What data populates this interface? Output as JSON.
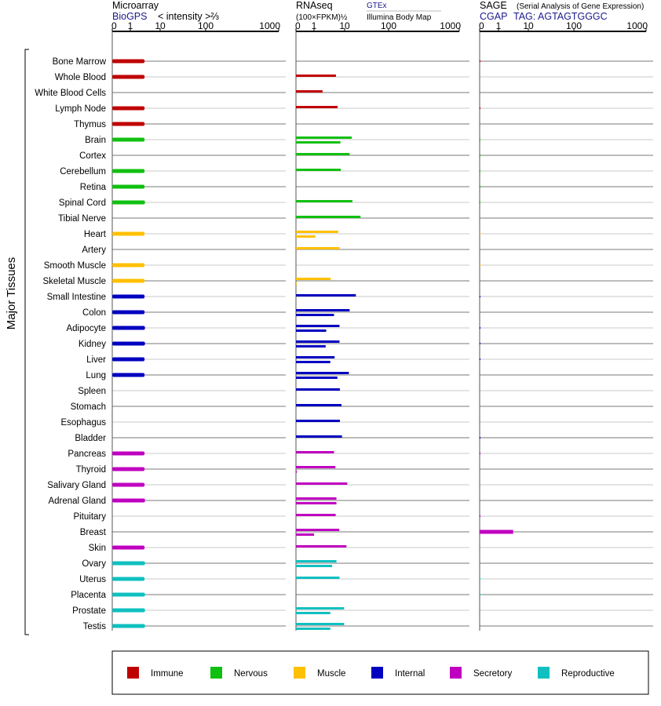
{
  "chart_data": {
    "type": "bar",
    "orientation": "horizontal",
    "side_label": "Major Tissues",
    "panels": [
      {
        "id": "microarray",
        "title": "Microarray",
        "source": "BioGPS",
        "subtitle": "< intensity >⅔",
        "scale": "power 2/3",
        "ticks": [
          "0",
          "1",
          "10",
          "100",
          "1000"
        ],
        "xlim": [
          0,
          1000
        ],
        "bar_groups": [
          [
            3.0
          ],
          [
            3.0
          ],
          [],
          [
            3.0
          ],
          [
            3.0
          ],
          [
            3.0
          ],
          [],
          [
            3.0
          ],
          [
            3.0
          ],
          [
            3.1
          ],
          [],
          [
            3.0
          ],
          [],
          [
            3.0
          ],
          [
            3.0
          ],
          [
            3.0
          ],
          [
            3.0
          ],
          [
            3.1
          ],
          [
            3.1
          ],
          [
            3.0
          ],
          [
            3.0
          ],
          [],
          [],
          [],
          [],
          [
            3.0
          ],
          [
            3.0
          ],
          [
            3.0
          ],
          [
            3.1
          ],
          [],
          [],
          [
            3.0
          ],
          [
            3.1
          ],
          [
            3.0
          ],
          [
            3.1
          ],
          [
            3.1
          ],
          [
            3.1
          ]
        ]
      },
      {
        "id": "rnaseq",
        "title": "RNAseq",
        "subtitle": "(100×FPKM)½",
        "source_top": "GTEx",
        "source_bottom": "Illumina Body Map",
        "scale": "sqrt",
        "ticks": [
          "0",
          "1",
          "10",
          "100",
          "1000"
        ],
        "xlim": [
          0,
          1000
        ],
        "bar_groups": [
          [],
          [
            5.2
          ],
          [
            1.9
          ],
          [
            5.9
          ],
          [],
          [
            14.5,
            7.3
          ],
          [
            13.0
          ],
          [
            7.5
          ],
          [],
          [
            15.0
          ],
          [
            23.0
          ],
          [
            6.2,
            1.1
          ],
          [
            6.9
          ],
          [],
          [
            3.5,
            0.01
          ],
          [
            18.0
          ],
          [
            13.0,
            4.5
          ],
          [
            6.8,
            2.5
          ],
          [
            6.8,
            2.4
          ],
          [
            4.7,
            3.4
          ],
          [
            12.5,
            5.8
          ],
          [
            7.0
          ],
          [
            7.9
          ],
          [
            7.0
          ],
          [
            8.2
          ],
          [
            4.5
          ],
          [
            5.0,
            0.01
          ],
          [
            11.5
          ],
          [
            5.4,
            5.4
          ],
          [
            5.1
          ],
          [
            6.7,
            1.0
          ],
          [
            11.0
          ],
          [
            5.4,
            3.9
          ],
          [
            6.8
          ],
          [],
          [
            9.6,
            3.4
          ],
          [
            9.6,
            3.4
          ]
        ]
      },
      {
        "id": "sage",
        "title": "SAGE",
        "subtitle": "(Serial Analysis of Gene Expression)",
        "source": "CGAP",
        "tag": "TAG: AGTAGTGGGC",
        "scale": "sqrt",
        "ticks": [
          "0",
          "1",
          "10",
          "100",
          "1000"
        ],
        "xlim": [
          0,
          1000
        ],
        "bar_groups": [
          [
            0.01
          ],
          [],
          [],
          [
            0.01
          ],
          [],
          [
            0.01
          ],
          [
            0.01
          ],
          [
            0.01
          ],
          [
            0.01
          ],
          [
            0.01
          ],
          [],
          [
            0.005
          ],
          [],
          [
            0.005
          ],
          [],
          [
            0.01
          ],
          [],
          [
            0.01
          ],
          [
            0.01
          ],
          [
            0.01
          ],
          [],
          [],
          [],
          [],
          [
            0.01
          ],
          [
            0.01
          ],
          [],
          [],
          [],
          [
            0.01
          ],
          [
            3.1
          ],
          [],
          [],
          [
            0.01
          ],
          [
            0.01
          ],
          [],
          []
        ]
      }
    ],
    "tissues": [
      {
        "name": "Bone Marrow",
        "group": "Immune"
      },
      {
        "name": "Whole Blood",
        "group": "Immune"
      },
      {
        "name": "White Blood Cells",
        "group": "Immune"
      },
      {
        "name": "Lymph Node",
        "group": "Immune"
      },
      {
        "name": "Thymus",
        "group": "Immune"
      },
      {
        "name": "Brain",
        "group": "Nervous"
      },
      {
        "name": "Cortex",
        "group": "Nervous"
      },
      {
        "name": "Cerebellum",
        "group": "Nervous"
      },
      {
        "name": "Retina",
        "group": "Nervous"
      },
      {
        "name": "Spinal Cord",
        "group": "Nervous"
      },
      {
        "name": "Tibial Nerve",
        "group": "Nervous"
      },
      {
        "name": "Heart",
        "group": "Muscle"
      },
      {
        "name": "Artery",
        "group": "Muscle"
      },
      {
        "name": "Smooth Muscle",
        "group": "Muscle"
      },
      {
        "name": "Skeletal Muscle",
        "group": "Muscle"
      },
      {
        "name": "Small Intestine",
        "group": "Internal"
      },
      {
        "name": "Colon",
        "group": "Internal"
      },
      {
        "name": "Adipocyte",
        "group": "Internal"
      },
      {
        "name": "Kidney",
        "group": "Internal"
      },
      {
        "name": "Liver",
        "group": "Internal"
      },
      {
        "name": "Lung",
        "group": "Internal"
      },
      {
        "name": "Spleen",
        "group": "Internal"
      },
      {
        "name": "Stomach",
        "group": "Internal"
      },
      {
        "name": "Esophagus",
        "group": "Internal"
      },
      {
        "name": "Bladder",
        "group": "Internal"
      },
      {
        "name": "Pancreas",
        "group": "Secretory"
      },
      {
        "name": "Thyroid",
        "group": "Secretory"
      },
      {
        "name": "Salivary Gland",
        "group": "Secretory"
      },
      {
        "name": "Adrenal Gland",
        "group": "Secretory"
      },
      {
        "name": "Pituitary",
        "group": "Secretory"
      },
      {
        "name": "Breast",
        "group": "Secretory"
      },
      {
        "name": "Skin",
        "group": "Secretory"
      },
      {
        "name": "Ovary",
        "group": "Reproductive"
      },
      {
        "name": "Uterus",
        "group": "Reproductive"
      },
      {
        "name": "Placenta",
        "group": "Reproductive"
      },
      {
        "name": "Prostate",
        "group": "Reproductive"
      },
      {
        "name": "Testis",
        "group": "Reproductive"
      }
    ],
    "legend": [
      {
        "name": "Immune",
        "color": "#c00000"
      },
      {
        "name": "Nervous",
        "color": "#10c010"
      },
      {
        "name": "Muscle",
        "color": "#ffc000"
      },
      {
        "name": "Internal",
        "color": "#0000c0"
      },
      {
        "name": "Secretory",
        "color": "#c000c0"
      },
      {
        "name": "Reproductive",
        "color": "#10c0c0"
      }
    ],
    "legend_placement": "bottom",
    "grid": true
  }
}
